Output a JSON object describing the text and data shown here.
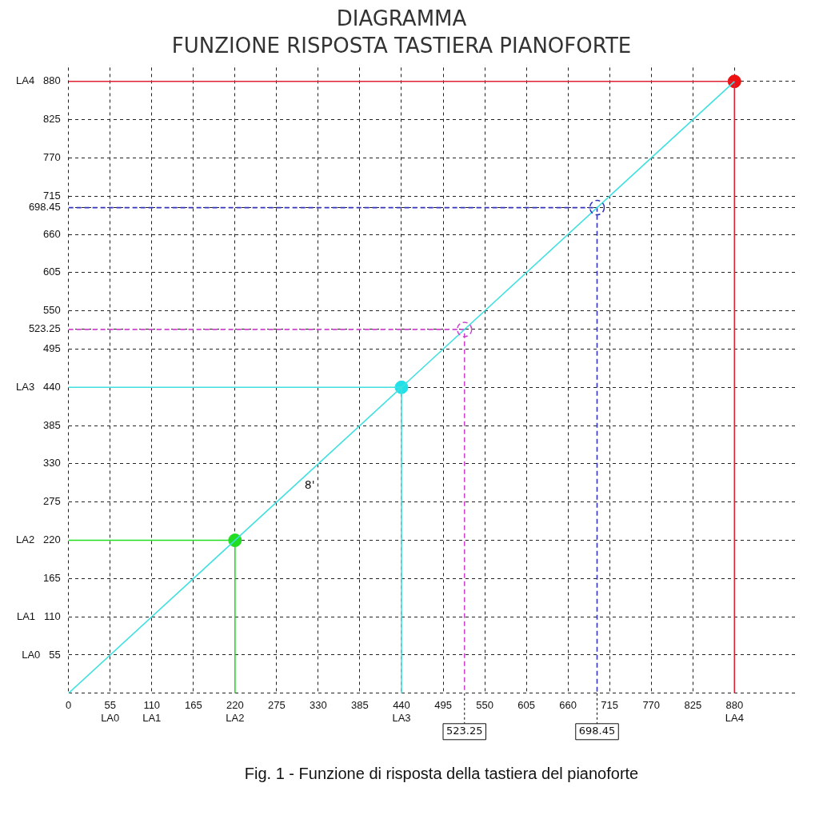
{
  "chart_data": {
    "type": "line",
    "title": "DIAGRAMMA",
    "subtitle": "FUNZIONE RISPOSTA TASTIERA PIANOFORTE",
    "annotations": [
      "Fig. 1 - Funzione di risposta della tastiera del pianoforte",
      {
        "text": "523.25",
        "x": 523.25,
        "y": 0
      },
      {
        "text": "698.45",
        "x": 698.45,
        "y": 0
      }
    ],
    "xlim": [
      0,
      960
    ],
    "ylim": [
      0,
      900
    ],
    "xticks": [
      0,
      {
        "value": 55,
        "label": "55\nLA0"
      },
      {
        "value": 110,
        "label": "110\nLA1"
      },
      165,
      {
        "value": 220,
        "label": "220\nLA2"
      },
      275,
      330,
      385,
      {
        "value": 440,
        "label": "440\nLA3"
      },
      495,
      550,
      605,
      660,
      715,
      770,
      825,
      {
        "value": 880,
        "label": "880\nLA4"
      }
    ],
    "yticks": [
      {
        "value": 0,
        "label": null
      },
      {
        "value": 55,
        "label": "LA0   55"
      },
      {
        "value": 110,
        "label": "LA1   110"
      },
      165,
      {
        "value": 220,
        "label": "LA2   220"
      },
      275,
      330,
      385,
      {
        "value": 440,
        "label": "LA3   440"
      },
      495,
      523.25,
      550,
      605,
      660,
      698.45,
      715,
      770,
      825,
      {
        "value": 880,
        "label": "LA4   880"
      }
    ],
    "grid": true,
    "legend": false,
    "marker": "none",
    "line_style": "solid",
    "series": [
      {
        "name": "8'",
        "type": "line",
        "color": "#40e0e0",
        "x": [
          0,
          880
        ],
        "values": [
          0,
          880
        ]
      },
      {
        "type": "line",
        "color": "#22dd22",
        "x": [
          0,
          220,
          220
        ],
        "values": [
          220,
          220,
          0
        ]
      },
      {
        "type": "line",
        "color": "#40e0e0",
        "x": [
          0,
          440,
          440
        ],
        "values": [
          440,
          440,
          0
        ]
      },
      {
        "type": "line",
        "color": "#dd2233",
        "x": [
          0,
          880,
          880
        ],
        "values": [
          880,
          880,
          0
        ]
      },
      {
        "type": "line",
        "color": "#cc44cc",
        "line_style": "dashed",
        "x": [
          0,
          523.25,
          523.25
        ],
        "values": [
          523.25,
          523.25,
          0
        ]
      },
      {
        "type": "line",
        "color": "#3333bb",
        "line_style": "dashed",
        "x": [
          0,
          698.45,
          698.45
        ],
        "values": [
          698.45,
          698.45,
          0
        ]
      },
      {
        "type": "scatter",
        "marker": "circle",
        "colors": [
          "#22dd22",
          "#20e0e8",
          "#ee1111"
        ],
        "x": [
          220,
          440,
          880
        ],
        "values": [
          220,
          440,
          880
        ]
      },
      {
        "type": "scatter",
        "marker": "circle",
        "line_style": "dashed",
        "colors": [
          "#cc44cc",
          "#3333bb"
        ],
        "x": [
          523.25,
          698.45
        ],
        "values": [
          523.25,
          698.45
        ]
      }
    ]
  }
}
